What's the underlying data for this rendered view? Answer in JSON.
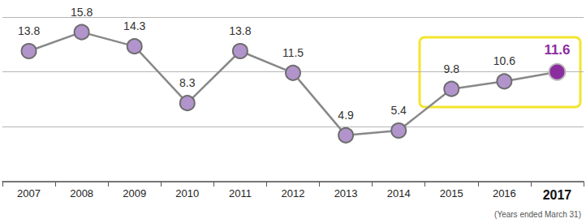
{
  "chart_data": {
    "type": "line",
    "categories": [
      "2007",
      "2008",
      "2009",
      "2010",
      "2011",
      "2012",
      "2013",
      "2014",
      "2015",
      "2016",
      "2017"
    ],
    "values": [
      13.8,
      15.8,
      14.3,
      8.3,
      13.8,
      11.5,
      4.9,
      5.4,
      9.8,
      10.6,
      11.6
    ],
    "color": "#b294cc",
    "ylim": [
      0,
      17.4
    ],
    "yticks": [
      0,
      5.8,
      11.6,
      17.4
    ],
    "grid": true,
    "data_labels": true,
    "tick_labels": "x",
    "marker": "circle",
    "annotation": "(Years ended March 31)"
  }
}
